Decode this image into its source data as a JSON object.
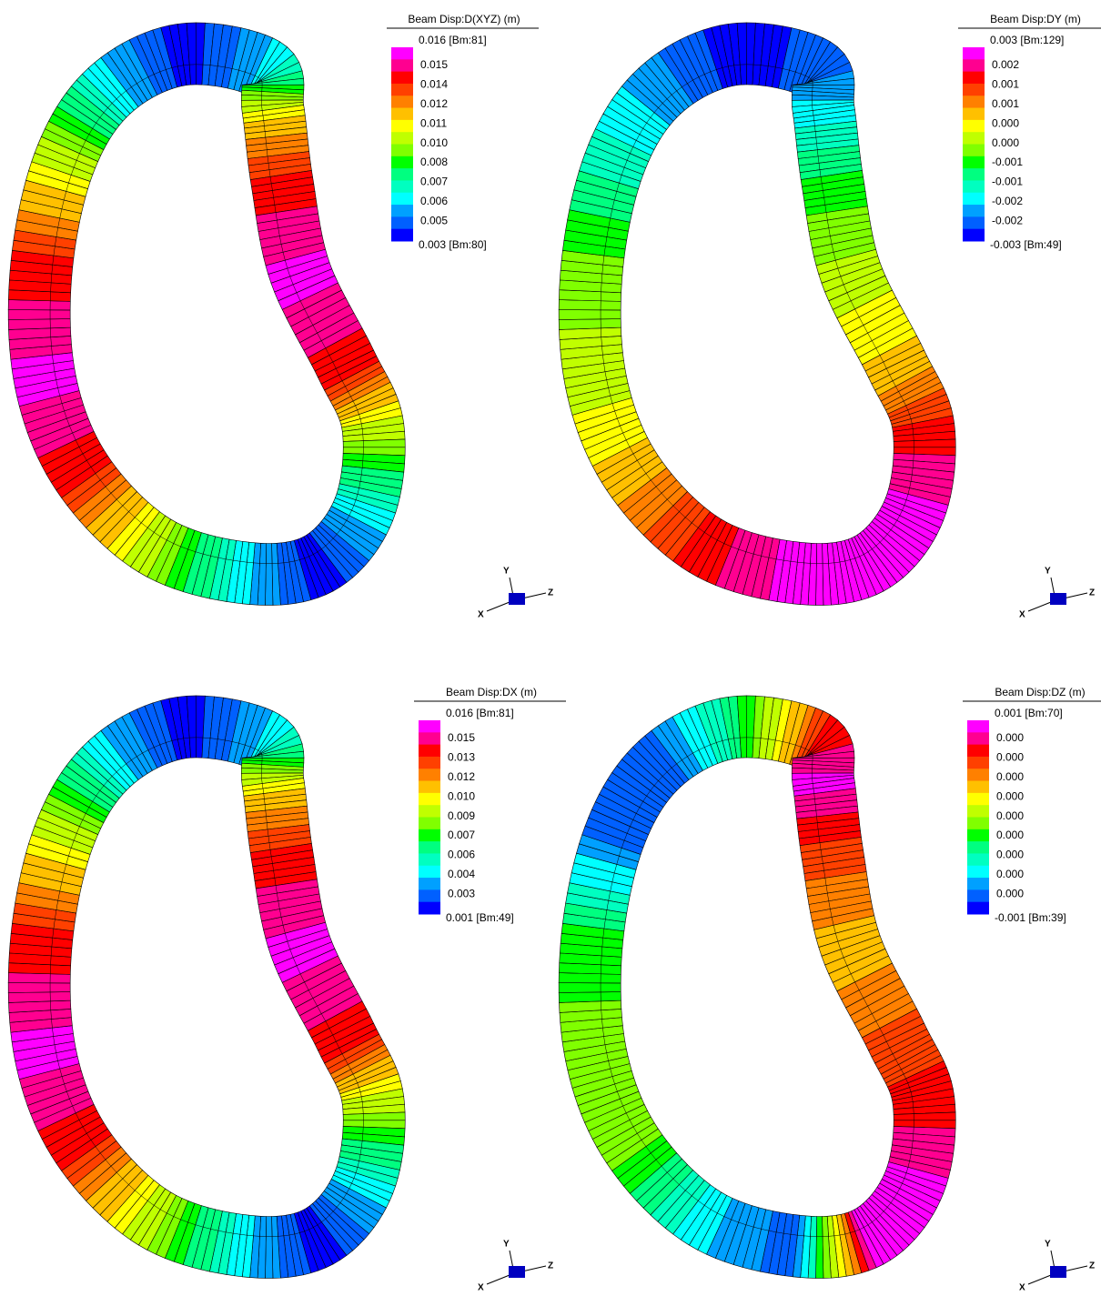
{
  "panels": [
    {
      "legend_title": "Beam Disp:D(XYZ)  (m)",
      "max_label": "0.016 [Bm:81]",
      "labels": [
        "0.015",
        "0.014",
        "0.012",
        "0.011",
        "0.010",
        "0.008",
        "0.007",
        "0.006",
        "0.005"
      ],
      "min_label": "0.003 [Bm:80]",
      "axes": {
        "x": "X",
        "y": "Y",
        "z": "Z"
      }
    },
    {
      "legend_title": "Beam Disp:DY  (m)",
      "max_label": "0.003 [Bm:129]",
      "labels": [
        "0.002",
        "0.001",
        "0.001",
        "0.000",
        "0.000",
        "-0.001",
        "-0.001",
        "-0.002",
        "-0.002"
      ],
      "min_label": "-0.003 [Bm:49]",
      "axes": {
        "x": "X",
        "y": "Y",
        "z": "Z"
      }
    },
    {
      "legend_title": "Beam Disp:DX  (m)",
      "max_label": "0.016 [Bm:81]",
      "labels": [
        "0.015",
        "0.013",
        "0.012",
        "0.010",
        "0.009",
        "0.007",
        "0.006",
        "0.004",
        "0.003"
      ],
      "min_label": "0.001 [Bm:49]",
      "axes": {
        "x": "X",
        "y": "Y",
        "z": "Z"
      }
    },
    {
      "legend_title": "Beam Disp:DZ  (m)",
      "max_label": "0.001 [Bm:70]",
      "labels": [
        "0.000",
        "0.000",
        "0.000",
        "0.000",
        "0.000",
        "0.000",
        "0.000",
        "0.000",
        "0.000"
      ],
      "min_label": "-0.001 [Bm:39]",
      "axes": {
        "x": "X",
        "y": "Y",
        "z": "Z"
      }
    }
  ],
  "colorbar_colors": [
    "#ff00ff",
    "#ff0090",
    "#ff0000",
    "#ff4000",
    "#ff8000",
    "#ffc000",
    "#ffff00",
    "#c0ff00",
    "#80ff00",
    "#00ff00",
    "#00ff80",
    "#00ffc0",
    "#00ffff",
    "#00a0ff",
    "#0060ff",
    "#0000ff"
  ]
}
